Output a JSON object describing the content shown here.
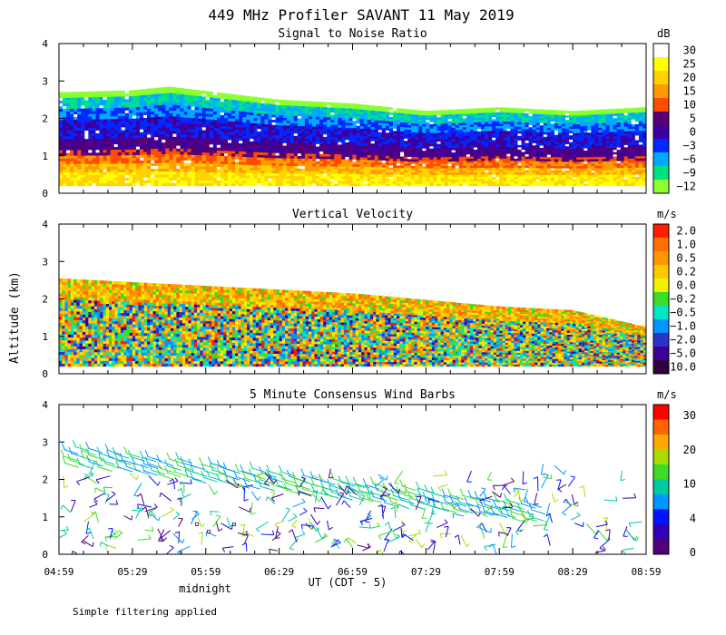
{
  "title": "449 MHz Profiler SAVANT 11 May 2019",
  "ylabel": "Altitude (km)",
  "xlabel": "UT (CDT - 5)",
  "x_ticks": [
    "04:59",
    "05:29",
    "05:59",
    "06:29",
    "06:59",
    "07:29",
    "07:59",
    "08:29",
    "08:59"
  ],
  "midnight_label": "midnight",
  "midnight_at": "05:59",
  "footnote": "Simple filtering applied",
  "chart_data": [
    {
      "type": "heatmap",
      "title": "Signal to Noise Ratio",
      "xlabel": "UT (CDT - 5)",
      "ylabel": "Altitude (km)",
      "xlim": [
        "04:59",
        "08:59"
      ],
      "ylim": [
        0,
        4
      ],
      "y_ticks": [
        "0",
        "1",
        "2",
        "3",
        "4"
      ],
      "colorbar_unit": "dB",
      "colorbar_labels": [
        "30",
        "25",
        "20",
        "15",
        "10",
        "5",
        "0",
        "−3",
        "−6",
        "−9",
        "−12"
      ],
      "colorbar_colors": [
        "#ffffff",
        "#ffff00",
        "#ffd200",
        "#ff9b00",
        "#ff4b00",
        "#550077",
        "#3c00a0",
        "#0028ff",
        "#00aaff",
        "#00e182",
        "#8cff32"
      ],
      "data_top_km": [
        {
          "time": "04:59",
          "km": 2.7
        },
        {
          "time": "05:29",
          "km": 2.75
        },
        {
          "time": "05:44",
          "km": 2.85
        },
        {
          "time": "06:29",
          "km": 2.5
        },
        {
          "time": "06:59",
          "km": 2.4
        },
        {
          "time": "07:29",
          "km": 2.2
        },
        {
          "time": "07:59",
          "km": 2.3
        },
        {
          "time": "08:29",
          "km": 2.2
        },
        {
          "time": "08:59",
          "km": 2.3
        }
      ]
    },
    {
      "type": "heatmap",
      "title": "Vertical Velocity",
      "xlabel": "UT (CDT - 5)",
      "ylabel": "Altitude (km)",
      "xlim": [
        "04:59",
        "08:59"
      ],
      "ylim": [
        0,
        4
      ],
      "y_ticks": [
        "0",
        "1",
        "2",
        "3",
        "4"
      ],
      "colorbar_unit": "m/s",
      "colorbar_labels": [
        "2.0",
        "1.0",
        "0.5",
        "0.2",
        "0.0",
        "−0.2",
        "−0.5",
        "−1.0",
        "−2.0",
        "−5.0",
        "−10.0"
      ],
      "colorbar_colors": [
        "#ff1e00",
        "#ff6e00",
        "#ff9600",
        "#ffc800",
        "#f0f000",
        "#3cdc28",
        "#00e6c8",
        "#0096ff",
        "#2d32c8",
        "#3c0096",
        "#32003c"
      ],
      "data_top_km": [
        {
          "time": "04:59",
          "km": 2.55
        },
        {
          "time": "05:59",
          "km": 2.35
        },
        {
          "time": "06:59",
          "km": 2.15
        },
        {
          "time": "07:59",
          "km": 1.8
        },
        {
          "time": "08:29",
          "km": 1.7
        },
        {
          "time": "08:59",
          "km": 1.25
        }
      ]
    },
    {
      "type": "scatter",
      "title": "5 Minute Consensus Wind Barbs",
      "xlabel": "UT (CDT - 5)",
      "ylabel": "Altitude (km)",
      "xlim": [
        "04:59",
        "08:59"
      ],
      "ylim": [
        0,
        4
      ],
      "y_ticks": [
        "0",
        "1",
        "2",
        "3",
        "4"
      ],
      "colorbar_unit": "m/s",
      "colorbar_labels": [
        "30",
        "20",
        "10",
        "4",
        "0"
      ],
      "colorbar_colors": [
        "#ff0000",
        "#ff6400",
        "#ffaa00",
        "#aadc00",
        "#3cdc28",
        "#00c8a0",
        "#0096ff",
        "#0014ff",
        "#3200b4",
        "#500078"
      ]
    }
  ]
}
